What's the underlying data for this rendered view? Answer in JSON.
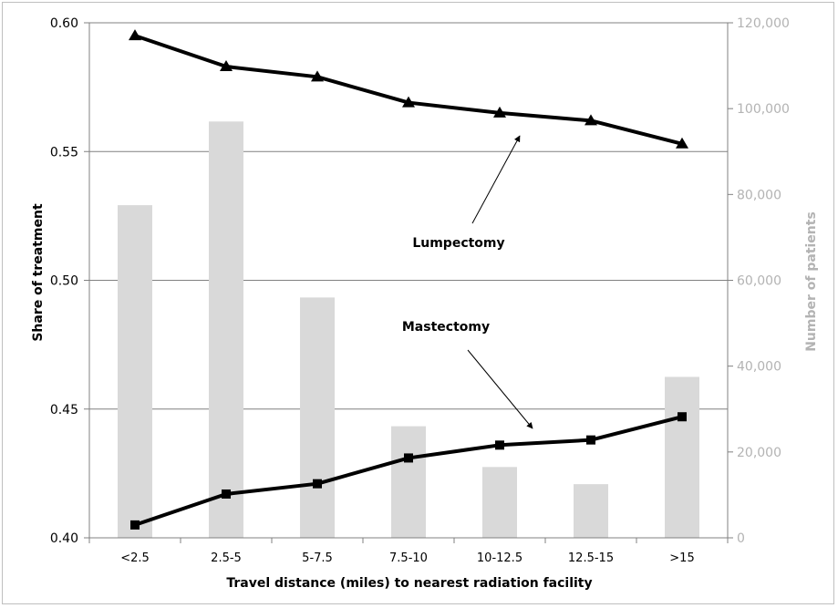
{
  "chart_data": {
    "type": "bar+line",
    "title": "",
    "xlabel": "Travel distance (miles) to nearest radiation facility",
    "ylabel_left": "Share of treatment",
    "ylabel_right": "Number of patients",
    "categories": [
      "<2.5",
      "2.5-5",
      "5-7.5",
      "7.5-10",
      "10-12.5",
      "12.5-15",
      ">15"
    ],
    "y_left_range": [
      0.4,
      0.6
    ],
    "y_left_ticks": [
      "0.40",
      "0.45",
      "0.50",
      "0.55",
      "0.60"
    ],
    "y_right_range": [
      0,
      120000
    ],
    "y_right_ticks": [
      "0",
      "20,000",
      "40,000",
      "60,000",
      "80,000",
      "100,000",
      "120,000"
    ],
    "bars": {
      "axis": "right",
      "color": "#d9d9d9",
      "values": [
        77500,
        97000,
        56000,
        26000,
        16500,
        12500,
        37500
      ]
    },
    "series": [
      {
        "name": "Lumpectomy",
        "axis": "left",
        "marker": "triangle",
        "values": [
          0.595,
          0.583,
          0.579,
          0.569,
          0.565,
          0.562,
          0.553
        ]
      },
      {
        "name": "Mastectomy",
        "axis": "left",
        "marker": "square",
        "values": [
          0.405,
          0.417,
          0.421,
          0.431,
          0.436,
          0.438,
          0.447
        ]
      }
    ],
    "annotations": [
      {
        "text": "Lumpectomy",
        "points_to": "Lumpectomy"
      },
      {
        "text": "Mastectomy",
        "points_to": "Mastectomy"
      }
    ],
    "grid": true,
    "colors": {
      "lines": "#000000",
      "bars": "#d9d9d9",
      "right_axis_text": "#b3b3b3",
      "grid": "#808080"
    }
  }
}
